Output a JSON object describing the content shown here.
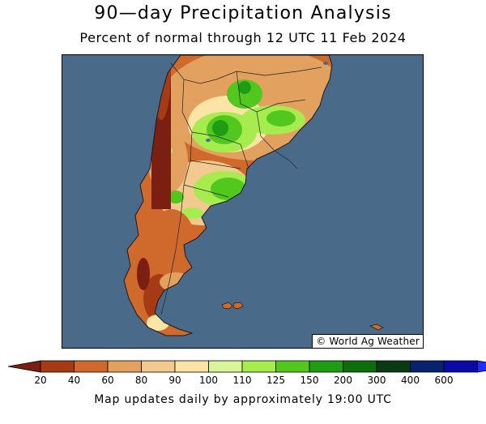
{
  "header": {
    "title": "90—day Precipitation Analysis",
    "subtitle": "Percent of normal through 12 UTC 11 Feb 2024"
  },
  "map": {
    "region": "South America",
    "ocean_color": "#4a6a8a",
    "credit": "© World Ag Weather"
  },
  "legend": {
    "colors": [
      "#7a1f12",
      "#a63a15",
      "#d0692c",
      "#e2a15f",
      "#f2c98e",
      "#fbe4a6",
      "#d9f59a",
      "#a6ec4e",
      "#52c81f",
      "#1e9c13",
      "#0c6e0a",
      "#083a14",
      "#07226e",
      "#0a0aa8",
      "#1e2cff"
    ],
    "tick_labels": [
      "20",
      "40",
      "60",
      "80",
      "90",
      "100",
      "110",
      "125",
      "150",
      "200",
      "300",
      "400",
      "600"
    ]
  },
  "footer": {
    "note": "Map updates daily by approximately 19:00 UTC"
  }
}
